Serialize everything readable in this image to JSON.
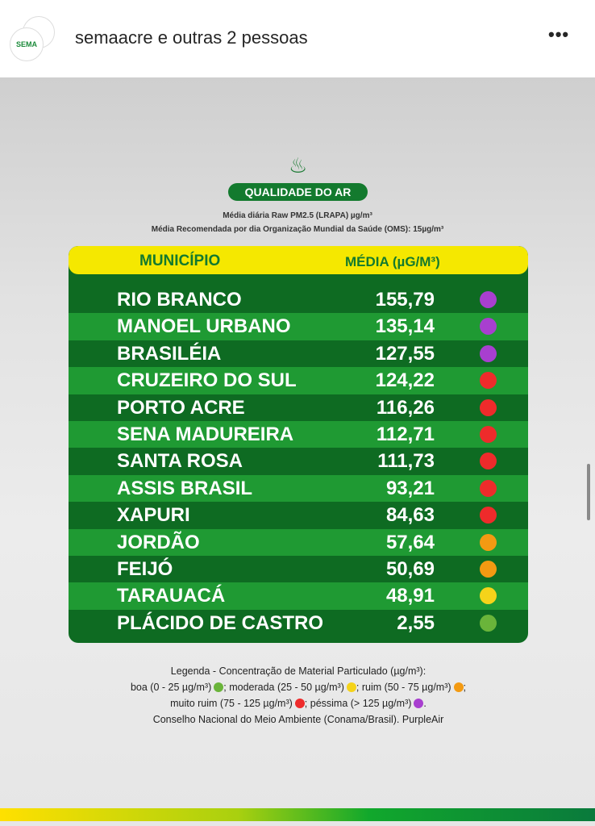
{
  "header": {
    "title": "semaacre e outras 2 pessoas",
    "avatar_text": "SEMA",
    "more_icon": "more-horizontal-icon"
  },
  "post": {
    "badge": "QUALIDADE DO AR",
    "icon": "smoke-icon",
    "subtitle1": "Média diária Raw PM2.5 (LRAPA) µg/m³",
    "subtitle2": "Média Recomendada por dia Organização Mundial da Saúde (OMS): 15µg/m³",
    "table": {
      "col1": "MUNICÍPIO",
      "col2": "MÉDIA (µG/M³)",
      "rows": [
        {
          "name": "RIO BRANCO",
          "value": "155,79",
          "color": "#a83fcf"
        },
        {
          "name": "MANOEL URBANO",
          "value": "135,14",
          "color": "#a83fcf"
        },
        {
          "name": "BRASILÉIA",
          "value": "127,55",
          "color": "#a83fcf"
        },
        {
          "name": "CRUZEIRO DO SUL",
          "value": "124,22",
          "color": "#ee2b2b"
        },
        {
          "name": "PORTO ACRE",
          "value": "116,26",
          "color": "#ee2b2b"
        },
        {
          "name": "SENA MADUREIRA",
          "value": "112,71",
          "color": "#ee2b2b"
        },
        {
          "name": "SANTA ROSA",
          "value": "111,73",
          "color": "#ee2b2b"
        },
        {
          "name": "ASSIS BRASIL",
          "value": "93,21",
          "color": "#ee2b2b"
        },
        {
          "name": "XAPURI",
          "value": "84,63",
          "color": "#ee2b2b"
        },
        {
          "name": "JORDÃO",
          "value": "57,64",
          "color": "#f39a12"
        },
        {
          "name": "FEIJÓ",
          "value": "50,69",
          "color": "#f39a12"
        },
        {
          "name": "TARAUACÁ",
          "value": "48,91",
          "color": "#f5d31a"
        },
        {
          "name": "PLÁCIDO DE CASTRO",
          "value": "2,55",
          "color": "#6ab43a"
        }
      ]
    },
    "legend": {
      "line1": "Legenda - Concentração de Material Particulado (µg/m³):",
      "boa": "boa (0 - 25 µg/m³)",
      "moderada": "; moderada (25 - 50 µg/m³)",
      "ruim": "; ruim (50 - 75 µg/m³)",
      "end1": ";",
      "muito_ruim": "muito ruim (75 - 125 µg/m³)",
      "pessima": "; péssima (> 125 µg/m³)",
      "end2": ".",
      "source": "Conselho Nacional do Meio Ambiente (Conama/Brasil). PurpleAir",
      "colors": {
        "boa": "#6ab43a",
        "moderada": "#f5d31a",
        "ruim": "#f39a12",
        "muito_ruim": "#ee2b2b",
        "pessima": "#a83fcf"
      }
    }
  }
}
